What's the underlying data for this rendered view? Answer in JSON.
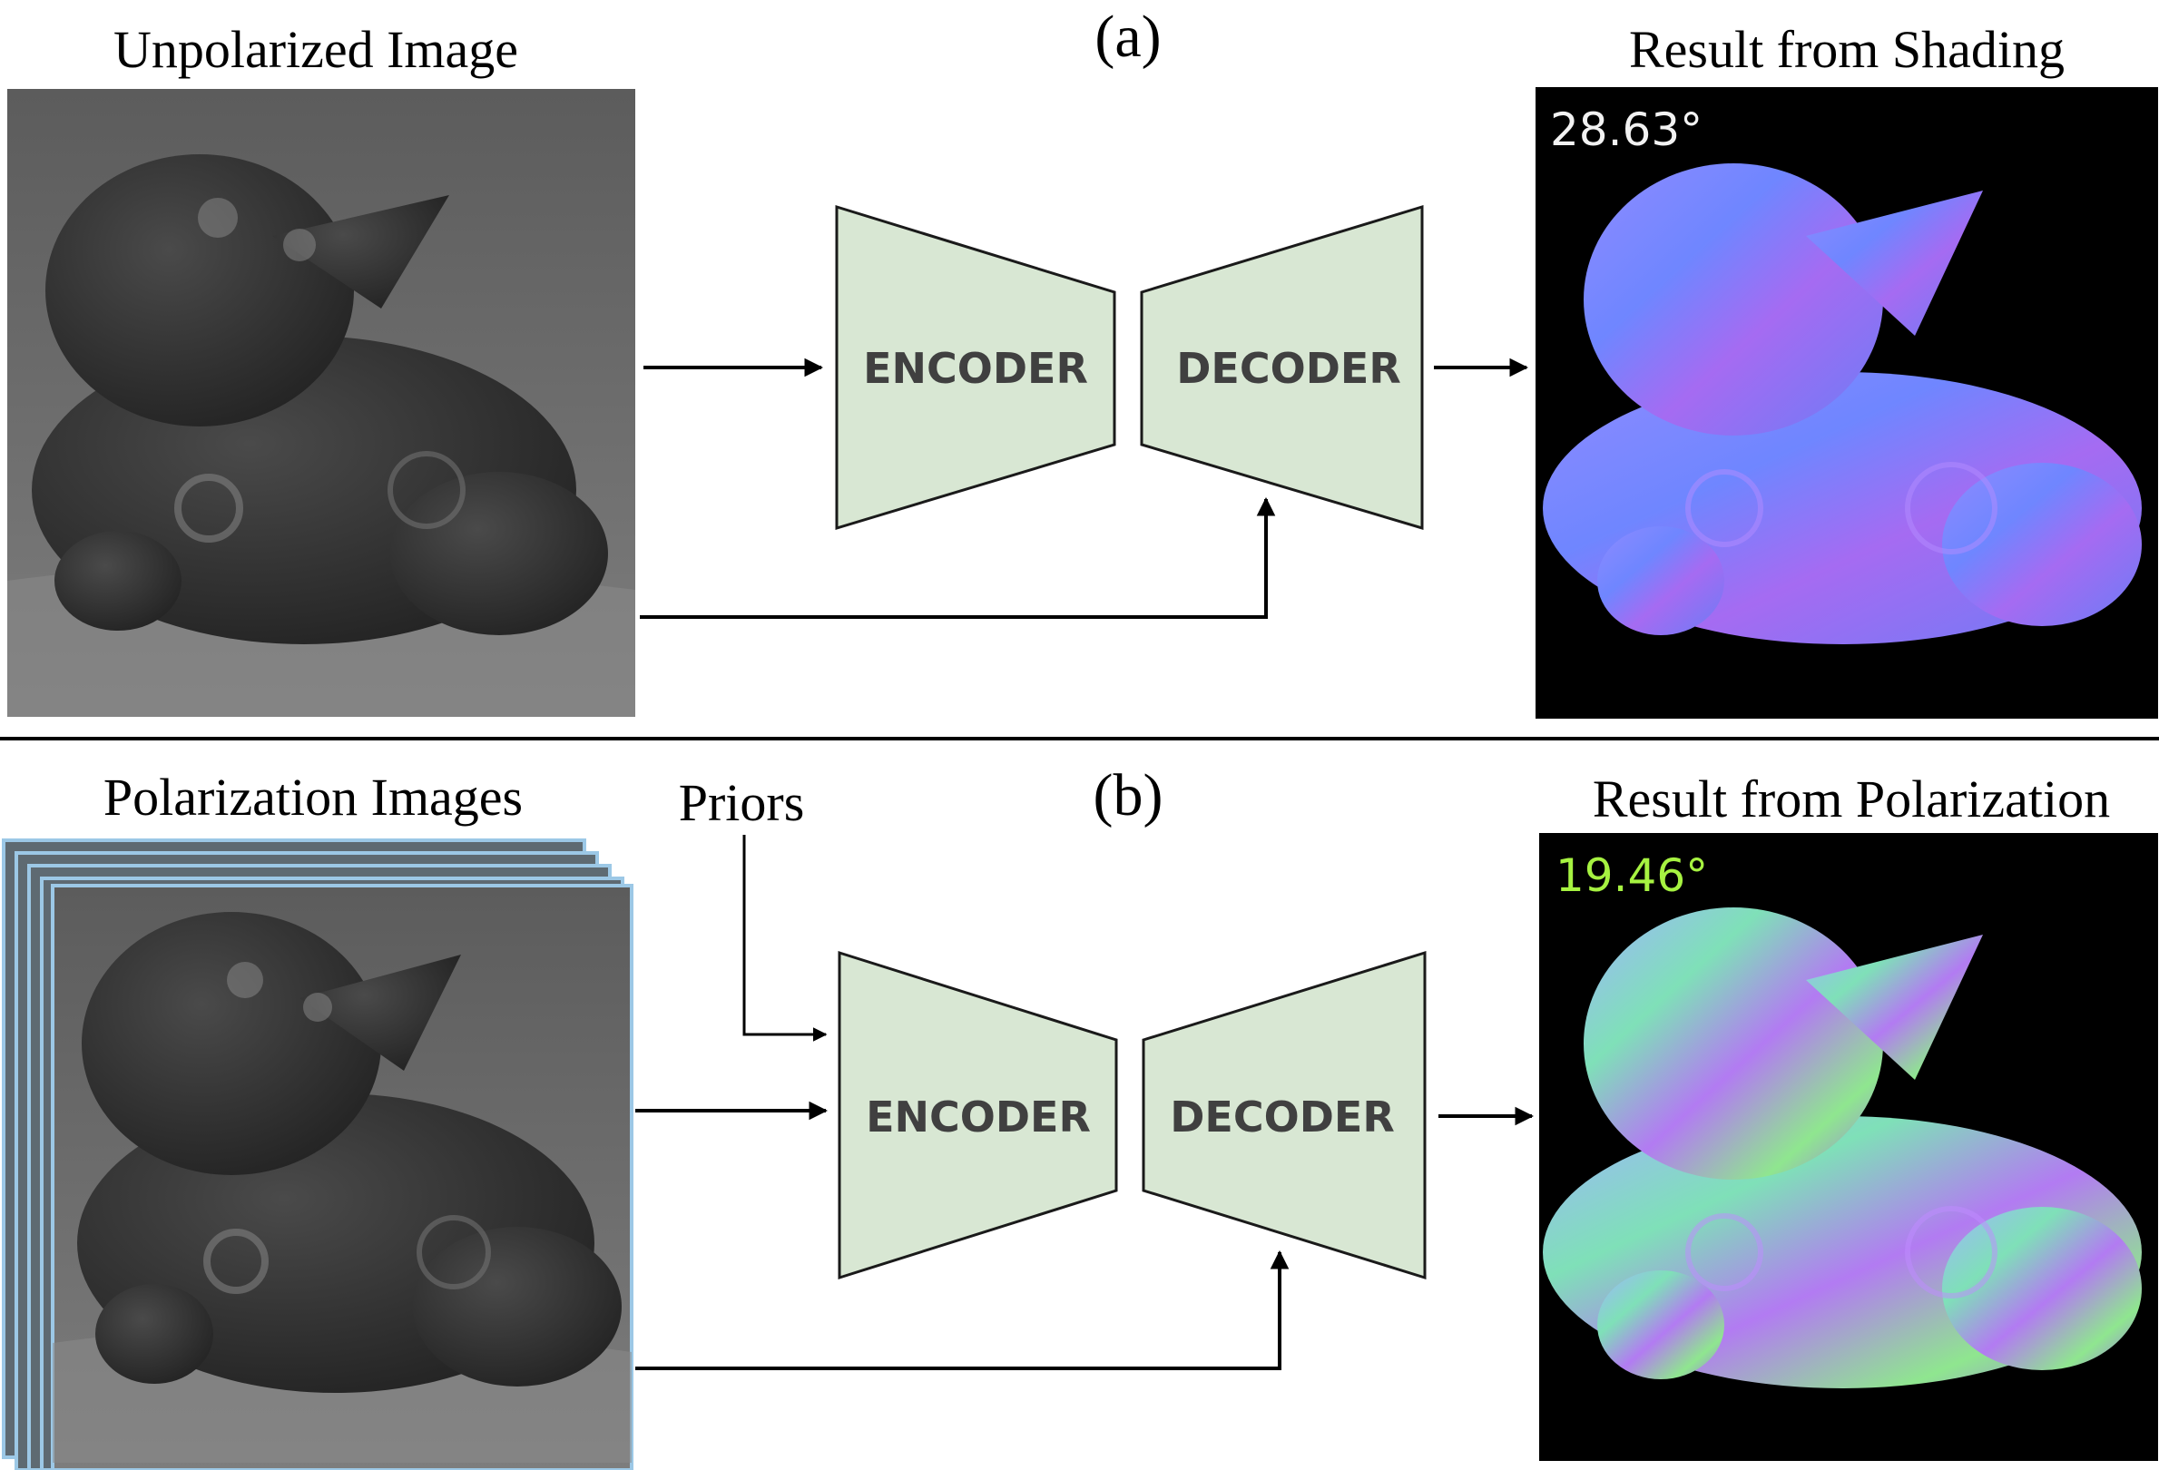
{
  "panel_a": {
    "label": "(a)",
    "input_title": "Unpolarized Image",
    "encoder_label": "ENCODER",
    "decoder_label": "DECODER",
    "result_title": "Result from Shading",
    "error_value": "28.63°"
  },
  "panel_b": {
    "label": "(b)",
    "input_title": "Polarization Images",
    "priors_label": "Priors",
    "encoder_label": "ENCODER",
    "decoder_label": "DECODER",
    "result_title": "Result from Polarization",
    "error_value": "19.46°"
  },
  "colors": {
    "network_fill": "#d8e7d3",
    "network_stroke": "#1a1a1a",
    "network_text": "#404040",
    "error_a": "#f2f2f2",
    "error_b": "#a6f241",
    "stack_border": "#9cc8e6",
    "normal_map_bg": "#000000"
  }
}
